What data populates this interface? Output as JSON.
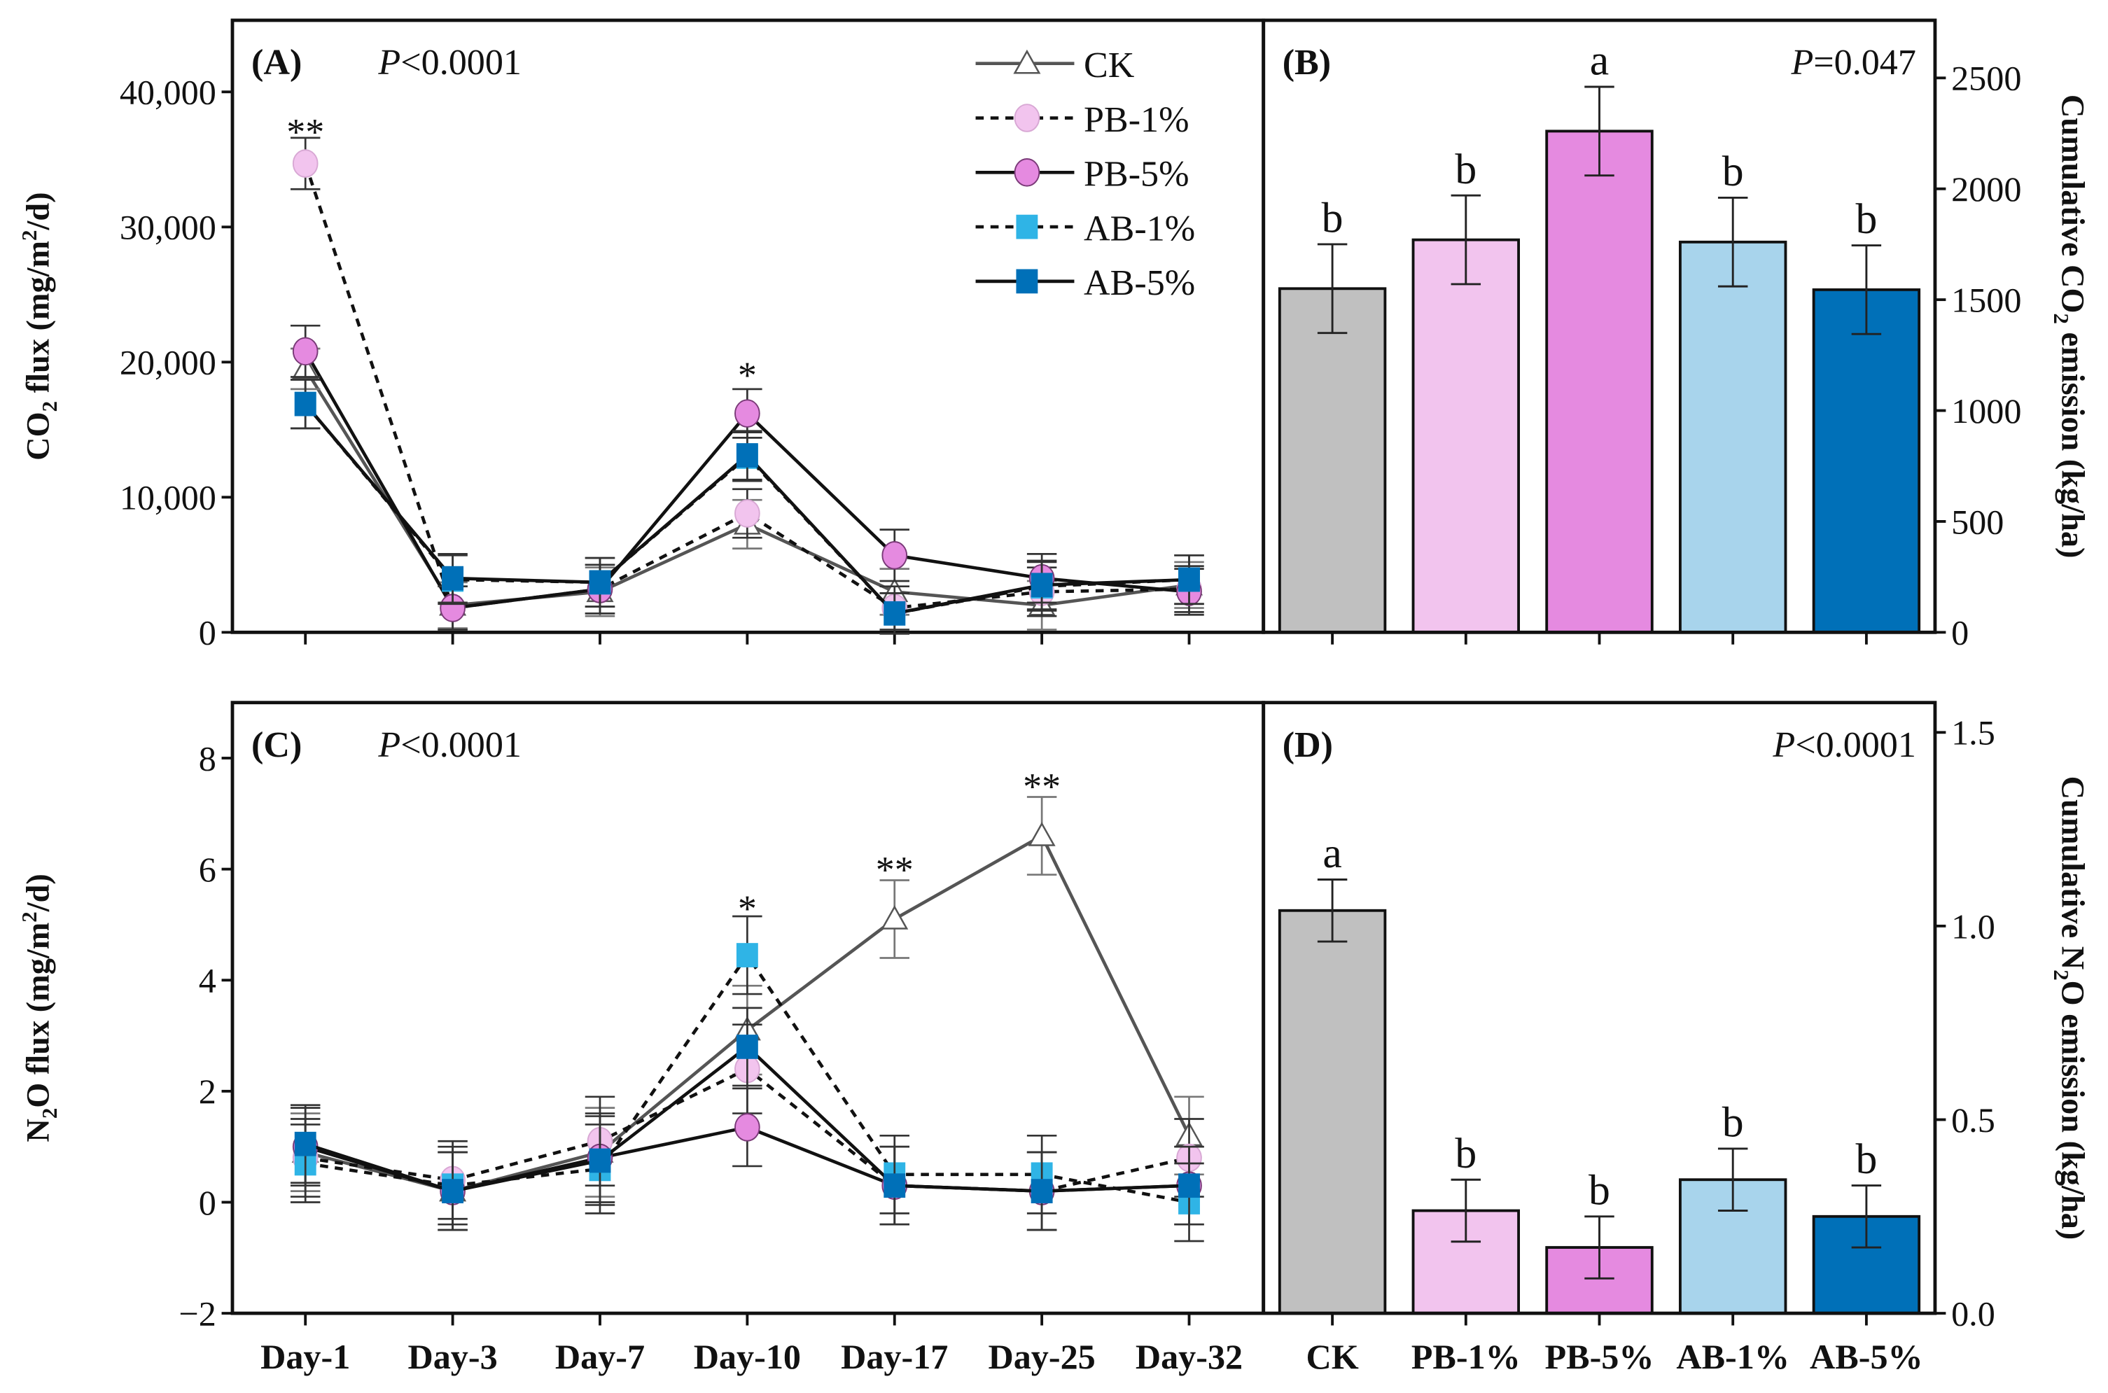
{
  "chart_data": [
    {
      "panel": "(A)",
      "type": "line",
      "p_value": "P<0.0001",
      "p_italic": "P",
      "p_rest": "<0.0001",
      "ylabel_main": "CO",
      "ylabel_sub": "2",
      "ylabel_rest": " flux (mg/m",
      "ylabel_sup": "2",
      "ylabel_end": "/d)",
      "ylim": [
        0,
        45300
      ],
      "yticks": [
        0,
        10000,
        20000,
        30000,
        40000
      ],
      "ytick_labels": [
        "0",
        "10,000",
        "20,000",
        "30,000",
        "40,000"
      ],
      "categories": [
        "Day-1",
        "Day-3",
        "Day-7",
        "Day-10",
        "Day-17",
        "Day-25",
        "Day-32"
      ],
      "series": [
        {
          "name": "CK",
          "values": [
            19500,
            2000,
            3000,
            8000,
            3000,
            2000,
            3500
          ],
          "errors": [
            1500,
            1700,
            1800,
            1800,
            1700,
            1800,
            1700
          ]
        },
        {
          "name": "PB-1%",
          "values": [
            34700,
            1800,
            3200,
            8800,
            1800,
            3000,
            3200
          ],
          "errors": [
            1900,
            1600,
            1800,
            1800,
            1600,
            1800,
            1700
          ]
        },
        {
          "name": "PB-5%",
          "values": [
            20800,
            1800,
            3200,
            16200,
            5700,
            4000,
            3000
          ],
          "errors": [
            1900,
            1600,
            1800,
            1800,
            1900,
            1800,
            1700
          ]
        },
        {
          "name": "AB-1%",
          "values": [
            16900,
            3900,
            3700,
            13000,
            1400,
            3400,
            3900
          ],
          "errors": [
            1800,
            1800,
            1800,
            1800,
            1500,
            1800,
            1800
          ]
        },
        {
          "name": "AB-5%",
          "values": [
            16900,
            4000,
            3700,
            13100,
            1400,
            3500,
            3900
          ],
          "errors": [
            1800,
            1800,
            1800,
            1800,
            1500,
            1800,
            1800
          ]
        }
      ],
      "annotations": [
        {
          "category": "Day-1",
          "text": "**",
          "y": 37500
        },
        {
          "category": "Day-10",
          "text": "*",
          "y": 19500
        }
      ],
      "legend": {
        "placement": "top-right",
        "entries": [
          "CK",
          "PB-1%",
          "PB-5%",
          "AB-1%",
          "AB-5%"
        ]
      }
    },
    {
      "panel": "(B)",
      "type": "bar",
      "p_value": "P=0.047",
      "p_italic": "P",
      "p_rest": "=0.047",
      "ylabel_main": "Cumulative CO",
      "ylabel_sub": "2",
      "ylabel_rest": " emission (kg/ha)",
      "ylim": [
        0,
        2760
      ],
      "yticks": [
        0,
        500,
        1000,
        1500,
        2000,
        2500
      ],
      "ytick_labels": [
        "0",
        "500",
        "1000",
        "1500",
        "2000",
        "2500"
      ],
      "categories": [
        "CK",
        "PB-1%",
        "PB-5%",
        "AB-1%",
        "AB-5%"
      ],
      "values": [
        1550,
        1770,
        2260,
        1760,
        1545
      ],
      "errors": [
        200,
        200,
        200,
        200,
        200
      ],
      "letters": [
        "b",
        "b",
        "a",
        "b",
        "b"
      ]
    },
    {
      "panel": "(C)",
      "type": "line",
      "p_value": "P<0.0001",
      "p_italic": "P",
      "p_rest": "<0.0001",
      "ylabel_main": "N",
      "ylabel_sub": "2",
      "ylabel_rest": "O flux (mg/m",
      "ylabel_sup": "2",
      "ylabel_end": "/d)",
      "ylim": [
        -2,
        9
      ],
      "yticks": [
        -2,
        0,
        2,
        4,
        6,
        8
      ],
      "ytick_labels": [
        "−2",
        "0",
        "2",
        "4",
        "6",
        "8"
      ],
      "categories": [
        "Day-1",
        "Day-3",
        "Day-7",
        "Day-10",
        "Day-17",
        "Day-25",
        "Day-32"
      ],
      "series": [
        {
          "name": "CK",
          "values": [
            0.9,
            0.2,
            0.9,
            3.1,
            5.1,
            6.6,
            1.2
          ],
          "errors": [
            0.7,
            0.7,
            0.8,
            0.8,
            0.7,
            0.7,
            0.7
          ]
        },
        {
          "name": "PB-1%",
          "values": [
            0.8,
            0.4,
            1.1,
            2.4,
            0.3,
            0.2,
            0.8
          ],
          "errors": [
            0.7,
            0.7,
            0.8,
            0.8,
            0.7,
            0.7,
            0.7
          ]
        },
        {
          "name": "PB-5%",
          "values": [
            1.0,
            0.2,
            0.8,
            1.35,
            0.3,
            0.2,
            0.3
          ],
          "errors": [
            0.7,
            0.7,
            0.8,
            0.7,
            0.7,
            0.7,
            0.7
          ]
        },
        {
          "name": "AB-1%",
          "values": [
            0.7,
            0.3,
            0.6,
            4.45,
            0.5,
            0.5,
            0.0
          ],
          "errors": [
            0.7,
            0.7,
            0.8,
            0.7,
            0.7,
            0.7,
            0.7
          ]
        },
        {
          "name": "AB-5%",
          "values": [
            1.05,
            0.2,
            0.75,
            2.8,
            0.3,
            0.2,
            0.3
          ],
          "errors": [
            0.7,
            0.7,
            0.8,
            0.7,
            0.7,
            0.7,
            0.7
          ]
        }
      ],
      "annotations": [
        {
          "category": "Day-10",
          "text": "*",
          "y": 5.4
        },
        {
          "category": "Day-17",
          "text": "**",
          "y": 6.1
        },
        {
          "category": "Day-25",
          "text": "**",
          "y": 7.6
        }
      ]
    },
    {
      "panel": "(D)",
      "type": "bar",
      "p_value": "P<0.0001",
      "p_italic": "P",
      "p_rest": "<0.0001",
      "ylabel_main": "Cumulative N",
      "ylabel_sub": "2",
      "ylabel_rest": "O emission (kg/ha)",
      "ylim": [
        0,
        1.577
      ],
      "yticks": [
        0,
        0.5,
        1.0,
        1.5
      ],
      "ytick_labels": [
        "0.0",
        "0.5",
        "1.0",
        "1.5"
      ],
      "categories": [
        "CK",
        "PB-1%",
        "PB-5%",
        "AB-1%",
        "AB-5%"
      ],
      "values": [
        1.04,
        0.265,
        0.17,
        0.345,
        0.25
      ],
      "errors": [
        0.08,
        0.08,
        0.08,
        0.08,
        0.08
      ],
      "letters": [
        "a",
        "b",
        "b",
        "b",
        "b"
      ]
    }
  ],
  "colors": {
    "CK": "#c0c0c0",
    "PB-1%": "#f2c4ee",
    "PB-5%": "#e58ae0",
    "AB-1%": "#2fb4e6",
    "AB-1%-bar": "#a8d4ec",
    "AB-5%": "#0070b8",
    "CK-line": "#555555"
  }
}
